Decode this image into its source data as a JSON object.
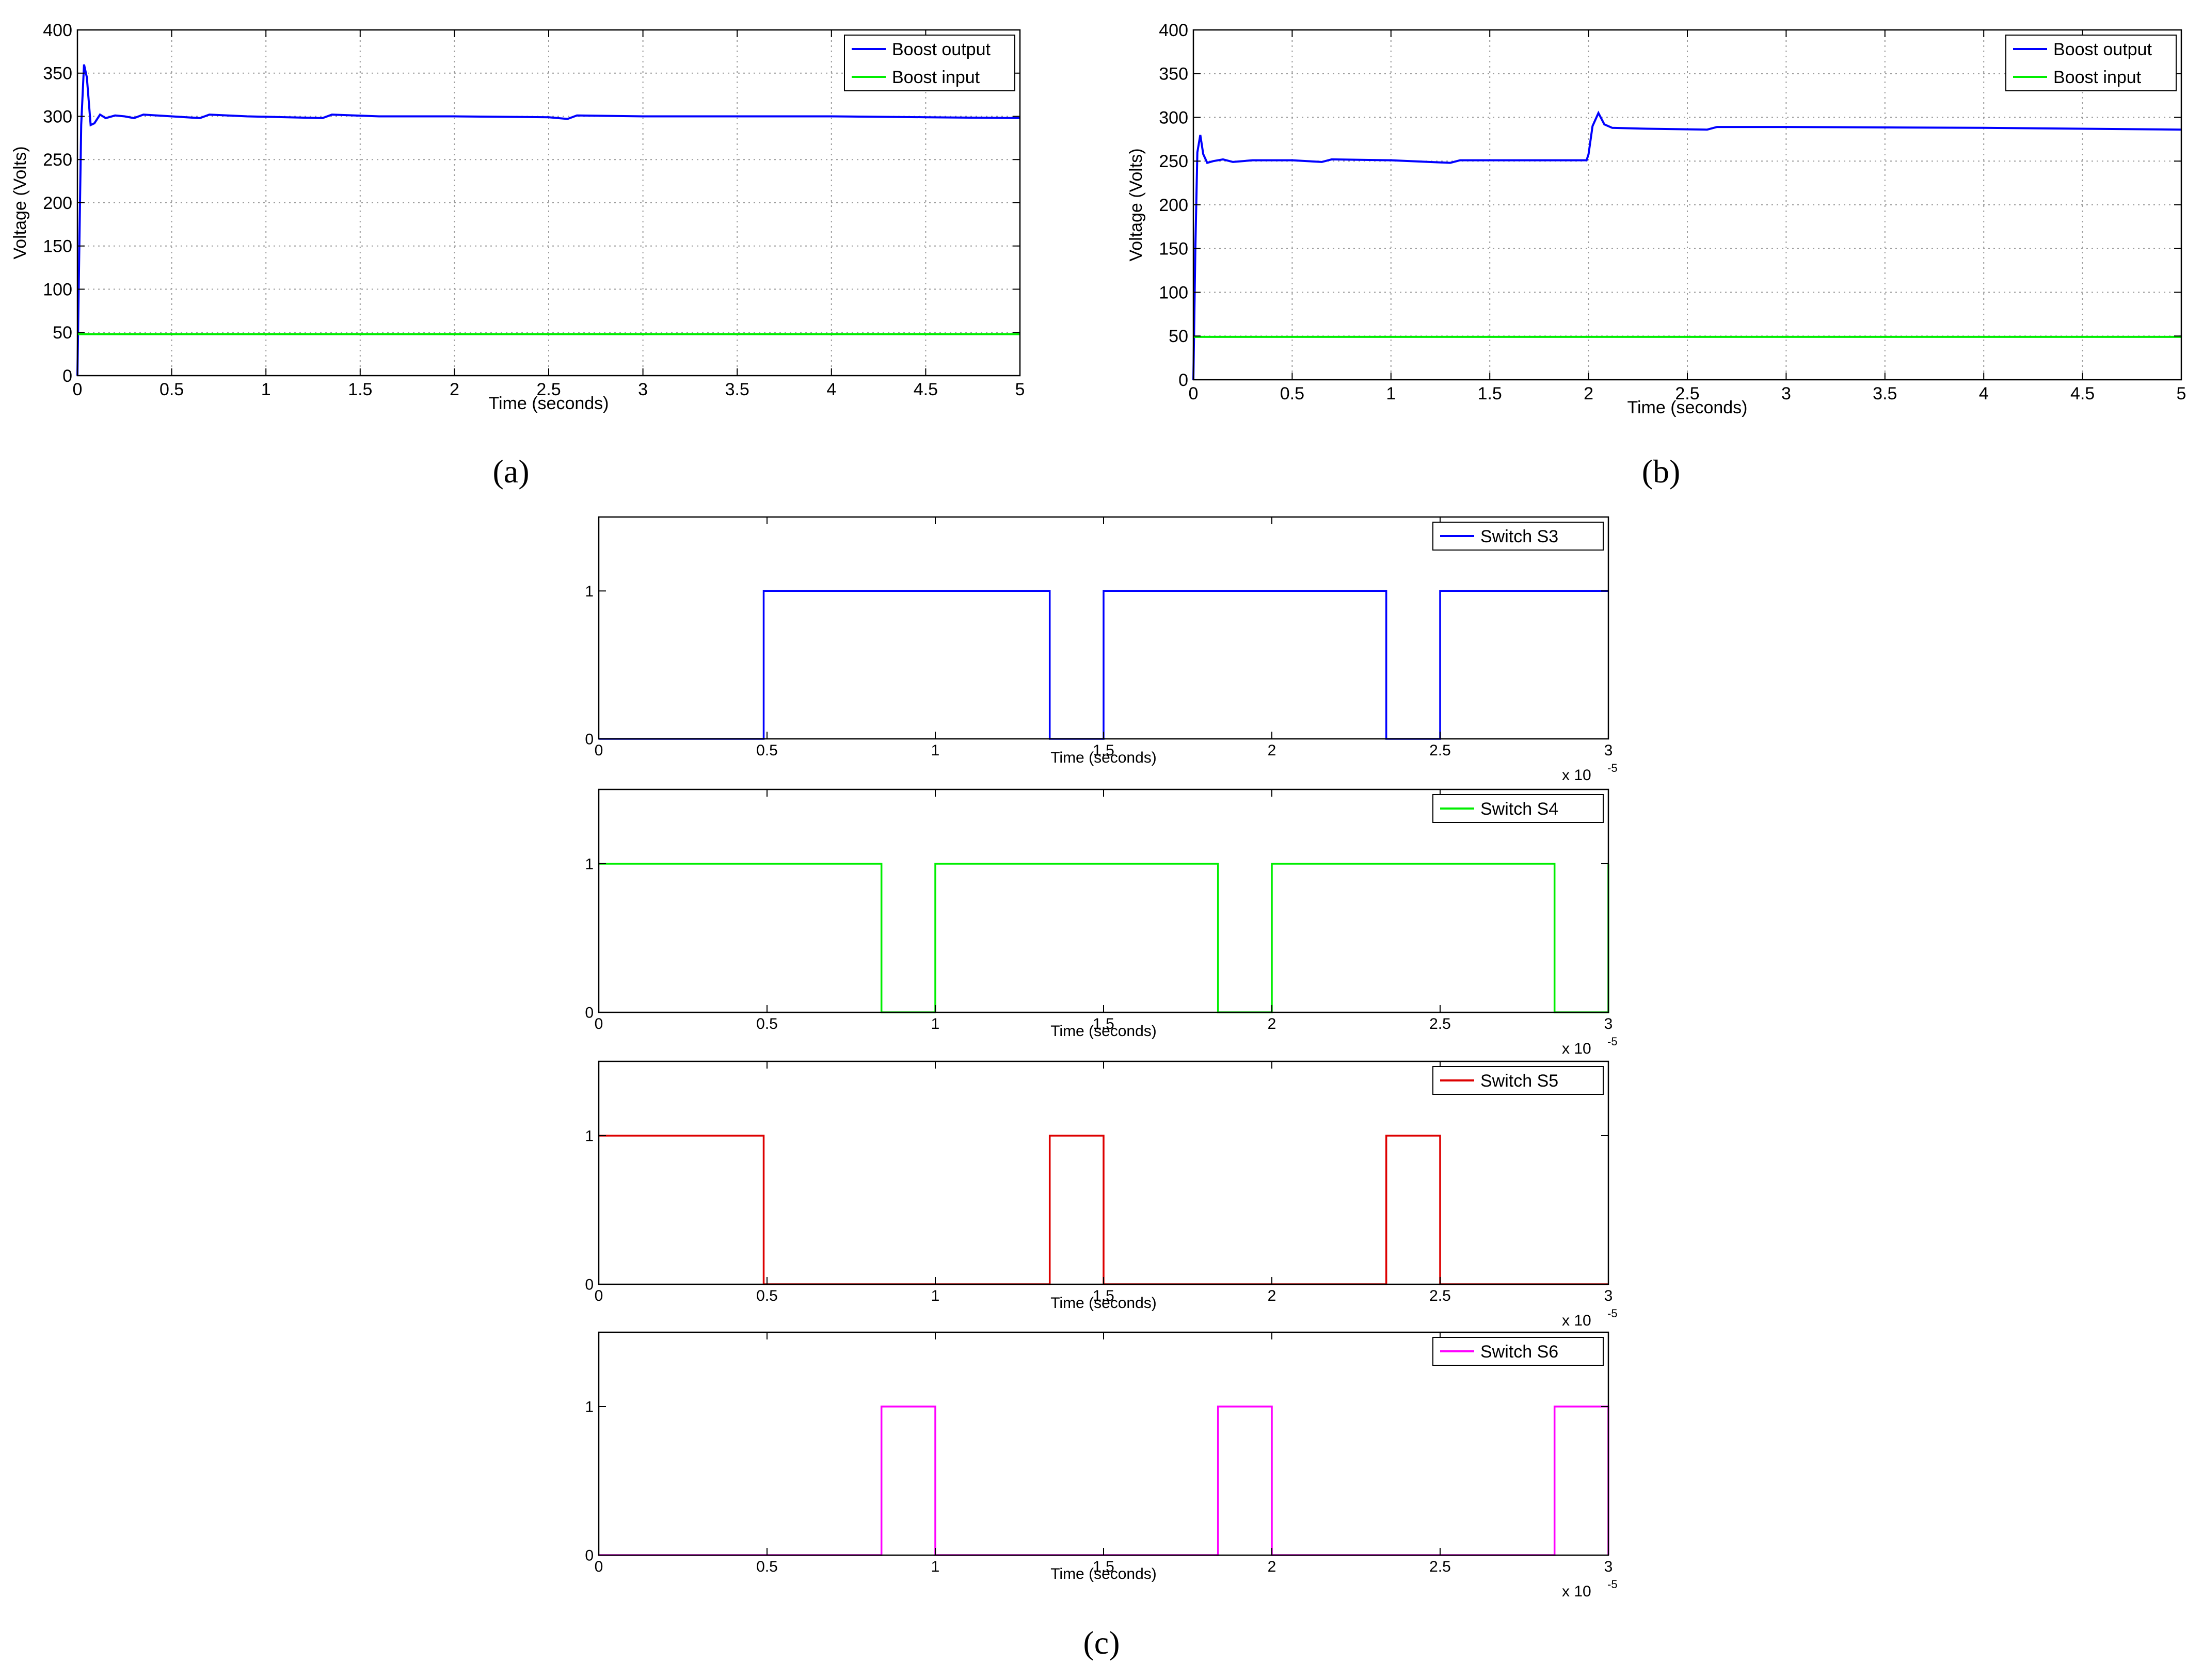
{
  "captions": [
    "(a)",
    "(b)",
    "(c)"
  ],
  "chart_data": [
    {
      "id": "a",
      "type": "line",
      "xlabel": "Time (seconds)",
      "ylabel": "Voltage (Volts)",
      "xlim": [
        0,
        5
      ],
      "ylim": [
        0,
        400
      ],
      "xticks": [
        "0",
        "0.5",
        "1",
        "1.5",
        "2",
        "2.5",
        "3",
        "3.5",
        "4",
        "4.5",
        "5"
      ],
      "yticks": [
        "0",
        "50",
        "100",
        "150",
        "200",
        "250",
        "300",
        "350",
        "400"
      ],
      "grid": true,
      "legend": "top-right",
      "series": [
        {
          "name": "Boost output",
          "color": "#0000ff",
          "x": [
            0,
            0.01,
            0.02,
            0.035,
            0.05,
            0.07,
            0.09,
            0.12,
            0.15,
            0.2,
            0.25,
            0.3,
            0.35,
            0.5,
            0.65,
            0.7,
            0.9,
            1.3,
            1.35,
            1.6,
            2.0,
            2.5,
            2.6,
            2.65,
            3.0,
            3.5,
            4.0,
            4.5,
            5.0
          ],
          "y": [
            0,
            150,
            290,
            360,
            345,
            290,
            292,
            302,
            298,
            301,
            300,
            298,
            302,
            300,
            298,
            302,
            300,
            298,
            302,
            300,
            300,
            299,
            297,
            301,
            300,
            300,
            300,
            299,
            298
          ]
        },
        {
          "name": "Boost input",
          "color": "#00ee00",
          "x": [
            0,
            5
          ],
          "y": [
            48,
            48
          ]
        }
      ]
    },
    {
      "id": "b",
      "type": "line",
      "xlabel": "Time (seconds)",
      "ylabel": "Voltage (Volts)",
      "xlim": [
        0,
        5
      ],
      "ylim": [
        0,
        400
      ],
      "xticks": [
        "0",
        "0.5",
        "1",
        "1.5",
        "2",
        "2.5",
        "3",
        "3.5",
        "4",
        "4.5",
        "5"
      ],
      "yticks": [
        "0",
        "50",
        "100",
        "150",
        "200",
        "250",
        "300",
        "350",
        "400"
      ],
      "grid": true,
      "legend": "top-right",
      "series": [
        {
          "name": "Boost output",
          "color": "#0000ff",
          "x": [
            0,
            0.01,
            0.02,
            0.035,
            0.05,
            0.07,
            0.1,
            0.15,
            0.2,
            0.3,
            0.5,
            0.65,
            0.7,
            1.0,
            1.3,
            1.35,
            1.6,
            1.99,
            2.0,
            2.02,
            2.05,
            2.08,
            2.12,
            2.3,
            2.6,
            2.65,
            3.0,
            4.0,
            4.5,
            5.0
          ],
          "y": [
            0,
            150,
            260,
            280,
            258,
            248,
            250,
            252,
            249,
            251,
            251,
            249,
            252,
            251,
            248,
            251,
            251,
            251,
            258,
            290,
            305,
            292,
            288,
            287,
            286,
            289,
            289,
            288,
            287,
            286
          ]
        },
        {
          "name": "Boost input",
          "color": "#00ee00",
          "x": [
            0,
            5
          ],
          "y": [
            49,
            49
          ]
        }
      ]
    },
    {
      "id": "c-s3",
      "type": "line",
      "xlabel": "Time (seconds)",
      "x_multiplier": "x 10",
      "x_exponent": "-5",
      "xlim": [
        0,
        3
      ],
      "ylim": [
        0,
        1.5
      ],
      "xticks": [
        "0",
        "0.5",
        "1",
        "1.5",
        "2",
        "2.5",
        "3"
      ],
      "yticks": [
        "0",
        "1"
      ],
      "grid": false,
      "legend": "top-right",
      "series": [
        {
          "name": "Switch S3",
          "color": "#0000ff",
          "x": [
            0,
            0.49,
            0.49,
            1.34,
            1.34,
            1.5,
            1.5,
            2.34,
            2.34,
            2.5,
            2.5,
            3.0
          ],
          "y": [
            0,
            0,
            1,
            1,
            0,
            0,
            1,
            1,
            0,
            0,
            1,
            1
          ]
        }
      ]
    },
    {
      "id": "c-s4",
      "type": "line",
      "xlabel": "Time (seconds)",
      "x_multiplier": "x 10",
      "x_exponent": "-5",
      "xlim": [
        0,
        3
      ],
      "ylim": [
        0,
        1.5
      ],
      "xticks": [
        "0",
        "0.5",
        "1",
        "1.5",
        "2",
        "2.5",
        "3"
      ],
      "yticks": [
        "0",
        "1"
      ],
      "grid": false,
      "legend": "top-right",
      "series": [
        {
          "name": "Switch S4",
          "color": "#00ee00",
          "x": [
            0,
            0.84,
            0.84,
            1.0,
            1.0,
            1.84,
            1.84,
            2.0,
            2.0,
            2.84,
            2.84,
            3.0,
            3.0
          ],
          "y": [
            1,
            1,
            0,
            0,
            1,
            1,
            0,
            0,
            1,
            1,
            0,
            0,
            1
          ]
        }
      ]
    },
    {
      "id": "c-s5",
      "type": "line",
      "xlabel": "Time (seconds)",
      "x_multiplier": "x 10",
      "x_exponent": "-5",
      "xlim": [
        0,
        3
      ],
      "ylim": [
        0,
        1.5
      ],
      "xticks": [
        "0",
        "0.5",
        "1",
        "1.5",
        "2",
        "2.5",
        "3"
      ],
      "yticks": [
        "0",
        "1"
      ],
      "grid": false,
      "legend": "top-right",
      "series": [
        {
          "name": "Switch S5",
          "color": "#dd0000",
          "x": [
            0,
            0.49,
            0.49,
            1.34,
            1.34,
            1.5,
            1.5,
            2.34,
            2.34,
            2.5,
            2.5,
            3.0
          ],
          "y": [
            1,
            1,
            0,
            0,
            1,
            1,
            0,
            0,
            1,
            1,
            0,
            0
          ]
        }
      ]
    },
    {
      "id": "c-s6",
      "type": "line",
      "xlabel": "Time (seconds)",
      "x_multiplier": "x 10",
      "x_exponent": "-5",
      "xlim": [
        0,
        3
      ],
      "ylim": [
        0,
        1.5
      ],
      "xticks": [
        "0",
        "0.5",
        "1",
        "1.5",
        "2",
        "2.5",
        "3"
      ],
      "yticks": [
        "0",
        "1"
      ],
      "grid": false,
      "legend": "top-right",
      "series": [
        {
          "name": "Switch S6",
          "color": "#ff00ff",
          "x": [
            0,
            0.84,
            0.84,
            1.0,
            1.0,
            1.84,
            1.84,
            2.0,
            2.0,
            2.84,
            2.84,
            3.0,
            3.0
          ],
          "y": [
            0,
            0,
            1,
            1,
            0,
            0,
            1,
            1,
            0,
            0,
            1,
            1,
            0
          ]
        }
      ]
    }
  ]
}
